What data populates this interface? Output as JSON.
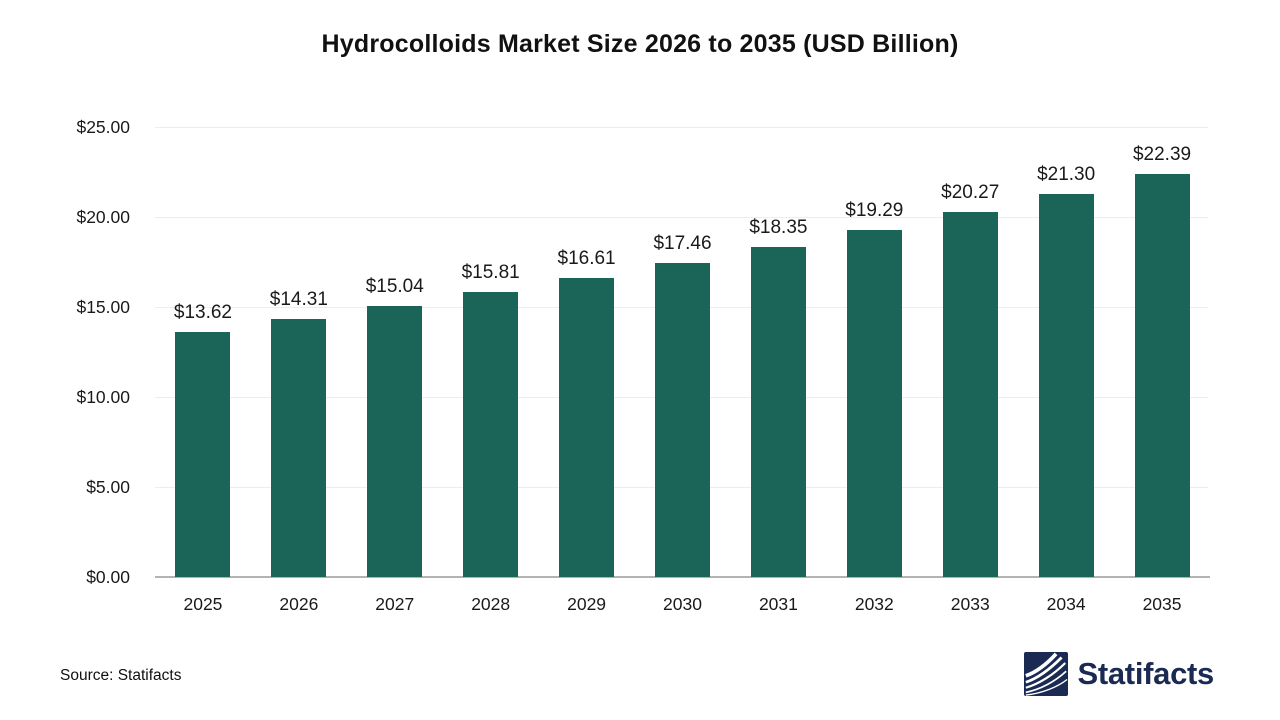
{
  "title": "Hydrocolloids Market Size 2026 to 2035 (USD Billion)",
  "source_note": "Source: Statifacts",
  "brand": {
    "name": "Statifacts"
  },
  "colors": {
    "bar": "#1a6458",
    "grid": "#ededed",
    "axis": "#b3b3b3",
    "text": "#1a1a1a",
    "logo_navy": "#1a2a52"
  },
  "chart_data": {
    "type": "bar",
    "title": "Hydrocolloids Market Size 2026 to 2035 (USD Billion)",
    "categories": [
      "2025",
      "2026",
      "2027",
      "2028",
      "2029",
      "2030",
      "2031",
      "2032",
      "2033",
      "2034",
      "2035"
    ],
    "values": [
      13.62,
      14.31,
      15.04,
      15.81,
      16.61,
      17.46,
      18.35,
      19.29,
      20.27,
      21.3,
      22.39
    ],
    "value_labels": [
      "$13.62",
      "$14.31",
      "$15.04",
      "$15.81",
      "$16.61",
      "$17.46",
      "$18.35",
      "$19.29",
      "$20.27",
      "$21.30",
      "$22.39"
    ],
    "xlabel": "",
    "ylabel": "",
    "ylim": [
      0,
      25
    ],
    "y_ticks": [
      25,
      20,
      15,
      10,
      5,
      0
    ],
    "y_tick_labels": [
      "$25.00",
      "$20.00",
      "$15.00",
      "$10.00",
      "$5.00",
      "$0.00"
    ],
    "grid": "horizontal",
    "legend": "none"
  }
}
